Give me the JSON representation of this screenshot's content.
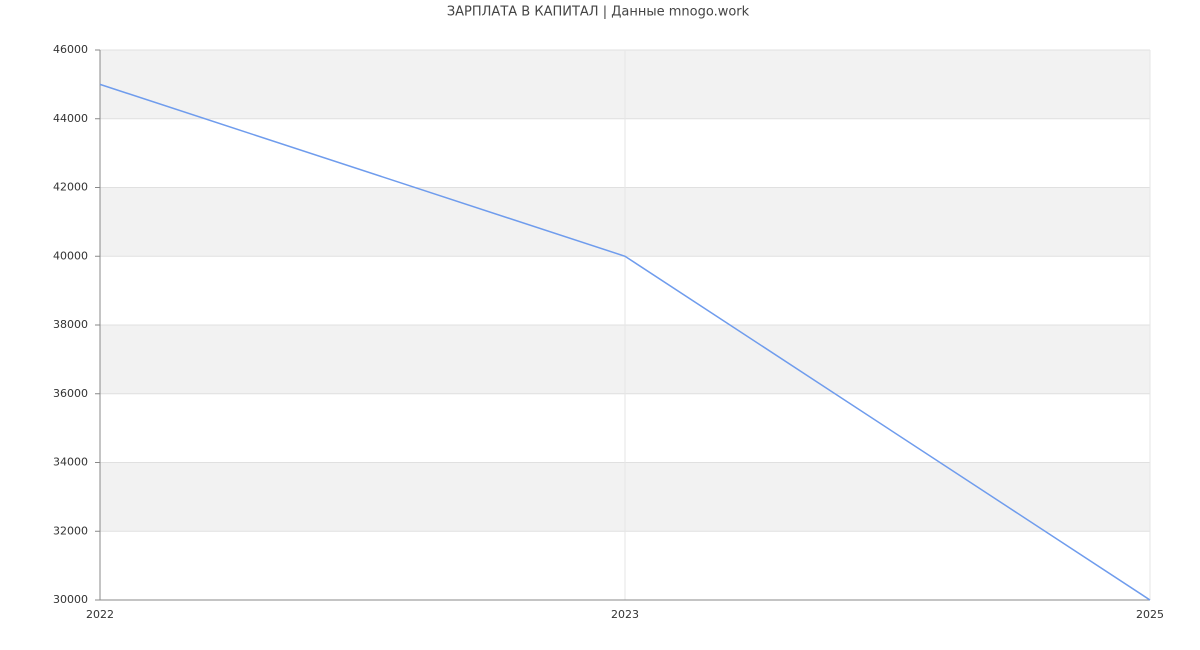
{
  "chart_data": {
    "type": "line",
    "title": "ЗАРПЛАТА В КАПИТАЛ | Данные mnogo.work",
    "categories": [
      "2022",
      "2023",
      "2025"
    ],
    "series": [
      {
        "name": "ЗАРПЛАТА В КАПИТАЛ",
        "color": "#6f9ced",
        "values": [
          45000,
          40000,
          30000
        ]
      }
    ],
    "ylim": [
      30000,
      46000
    ],
    "yticks": [
      30000,
      32000,
      34000,
      36000,
      38000,
      40000,
      42000,
      44000,
      46000
    ],
    "grid": true
  }
}
